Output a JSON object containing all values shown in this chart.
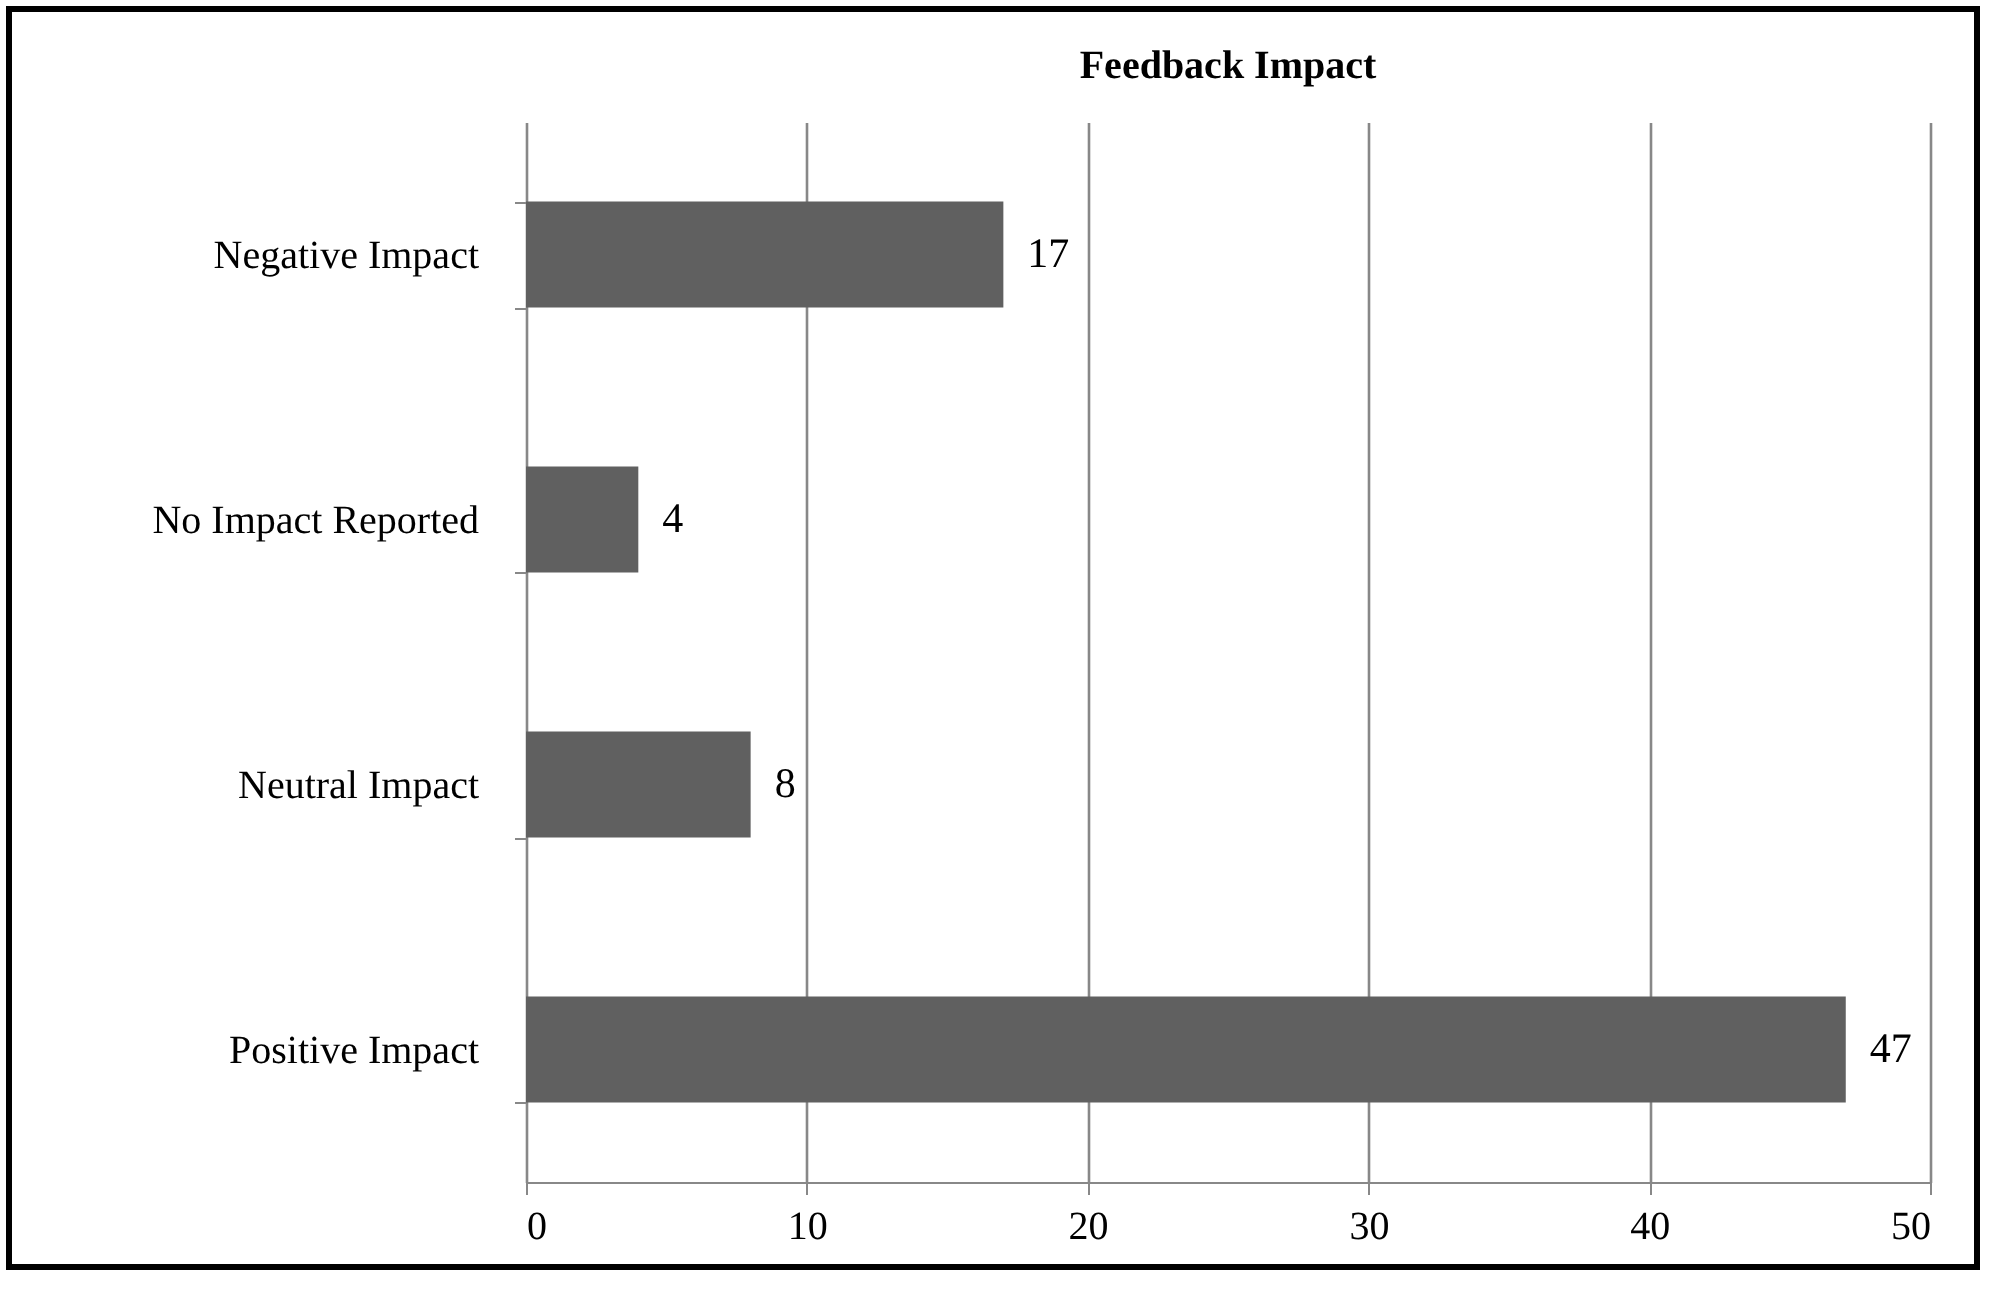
{
  "chart_data": {
    "type": "bar",
    "title": "Feedback Impact",
    "orientation": "horizontal",
    "categories": [
      "Negative Impact",
      "No Impact Reported",
      "Neutral Impact",
      "Positive Impact"
    ],
    "values": [
      17,
      4,
      8,
      47
    ],
    "color": "#606060",
    "xlim": [
      0,
      50
    ],
    "xticks": [
      0,
      10,
      20,
      30,
      40,
      50
    ],
    "grid": "x",
    "data_labels": true
  }
}
